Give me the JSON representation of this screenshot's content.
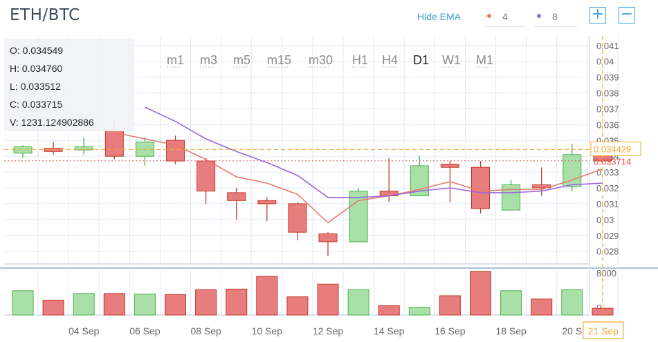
{
  "title": "ETH/BTC",
  "controls": {
    "hide_ema_label": "Hide EMA",
    "ema": [
      {
        "period": "4",
        "color": "#e8786a"
      },
      {
        "period": "8",
        "color": "#9a66e0"
      }
    ],
    "zoom_in": "+",
    "zoom_out": "−"
  },
  "timeframes": [
    "m1",
    "m3",
    "m5",
    "m15",
    "m30",
    "H1",
    "H4",
    "D1",
    "W1",
    "M1"
  ],
  "active_timeframe": "D1",
  "ohlc": {
    "open_label": "O:",
    "open": "0.034549",
    "high_label": "H:",
    "high": "0.034760",
    "low_label": "L:",
    "low": "0.033512",
    "close_label": "C:",
    "close": "0.033715",
    "volume_label": "V:",
    "volume": "1231.124902886"
  },
  "colors": {
    "up": "#a8e0a8",
    "up_stroke": "#4cae4c",
    "down": "#e87d7d",
    "down_stroke": "#c0392b",
    "grid": "#e2e8f2",
    "axis_text": "#666666",
    "crosshair": "#f0a830",
    "last_price": "#e05050"
  },
  "chart_data": {
    "type": "candlestick",
    "x_ticks": [
      "04 Sep",
      "06 Sep",
      "08 Sep",
      "10 Sep",
      "12 Sep",
      "14 Sep",
      "16 Sep",
      "18 Sep",
      "20 S"
    ],
    "price_ticks": [
      "0.041",
      "0.04",
      "0.039",
      "0.038",
      "0.037",
      "0.036",
      "0.035",
      "0.034",
      "0.033",
      "0.032",
      "0.031",
      "0.03",
      "0.029",
      "0.028"
    ],
    "volume_ticks": [
      "8000",
      "0"
    ],
    "ylim": [
      0.0272,
      0.0416
    ],
    "volume_ylim": [
      0,
      8000
    ],
    "crosshair_price": "0.034429",
    "crosshair_date": "21 Sep",
    "last_price_label": "0.033714",
    "last_price": 0.033714,
    "candles": [
      {
        "date": "02 Sep",
        "open": 0.0342,
        "high": 0.0347,
        "low": 0.0339,
        "close": 0.0346,
        "volume": 4400
      },
      {
        "date": "03 Sep",
        "open": 0.0345,
        "high": 0.0349,
        "low": 0.0341,
        "close": 0.0343,
        "volume": 2700
      },
      {
        "date": "04 Sep",
        "open": 0.0344,
        "high": 0.0352,
        "low": 0.0341,
        "close": 0.0346,
        "volume": 3900
      },
      {
        "date": "05 Sep",
        "open": 0.0356,
        "high": 0.0362,
        "low": 0.0338,
        "close": 0.034,
        "volume": 3900
      },
      {
        "date": "06 Sep",
        "open": 0.034,
        "high": 0.0352,
        "low": 0.0334,
        "close": 0.0349,
        "volume": 3800
      },
      {
        "date": "07 Sep",
        "open": 0.035,
        "high": 0.0353,
        "low": 0.0335,
        "close": 0.0337,
        "volume": 3700
      },
      {
        "date": "08 Sep",
        "open": 0.0337,
        "high": 0.0339,
        "low": 0.031,
        "close": 0.0318,
        "volume": 4600
      },
      {
        "date": "09 Sep",
        "open": 0.0317,
        "high": 0.032,
        "low": 0.03,
        "close": 0.0312,
        "volume": 4700
      },
      {
        "date": "10 Sep",
        "open": 0.0312,
        "high": 0.0314,
        "low": 0.0299,
        "close": 0.031,
        "volume": 7000
      },
      {
        "date": "11 Sep",
        "open": 0.031,
        "high": 0.0311,
        "low": 0.0287,
        "close": 0.0292,
        "volume": 3300
      },
      {
        "date": "12 Sep",
        "open": 0.0291,
        "high": 0.0292,
        "low": 0.0277,
        "close": 0.0286,
        "volume": 5600
      },
      {
        "date": "13 Sep",
        "open": 0.0286,
        "high": 0.032,
        "low": 0.0286,
        "close": 0.0318,
        "volume": 4600
      },
      {
        "date": "14 Sep",
        "open": 0.0318,
        "high": 0.0339,
        "low": 0.0311,
        "close": 0.0315,
        "volume": 1700
      },
      {
        "date": "15 Sep",
        "open": 0.0315,
        "high": 0.034,
        "low": 0.0315,
        "close": 0.0334,
        "volume": 1400
      },
      {
        "date": "16 Sep",
        "open": 0.0335,
        "high": 0.0337,
        "low": 0.0311,
        "close": 0.0333,
        "volume": 3500
      },
      {
        "date": "17 Sep",
        "open": 0.0333,
        "high": 0.0337,
        "low": 0.0304,
        "close": 0.0307,
        "volume": 7900
      },
      {
        "date": "18 Sep",
        "open": 0.0306,
        "high": 0.0325,
        "low": 0.0306,
        "close": 0.0322,
        "volume": 4400
      },
      {
        "date": "19 Sep",
        "open": 0.0322,
        "high": 0.0333,
        "low": 0.0315,
        "close": 0.032,
        "volume": 2900
      },
      {
        "date": "20 Sep",
        "open": 0.0321,
        "high": 0.0348,
        "low": 0.0318,
        "close": 0.0341,
        "volume": 4600
      },
      {
        "date": "21 Sep",
        "open": 0.0345,
        "high": 0.0347,
        "low": 0.0335,
        "close": 0.0337,
        "volume": 1231
      }
    ],
    "ema_series": [
      {
        "period": "4",
        "values": [
          null,
          null,
          null,
          0.0355,
          0.0351,
          0.0347,
          0.0338,
          0.0327,
          0.0323,
          0.0316,
          0.0298,
          0.0312,
          0.0315,
          0.0319,
          0.0324,
          0.0318,
          0.0319,
          0.0319,
          0.0325,
          0.0332
        ]
      },
      {
        "period": "8",
        "values": [
          null,
          null,
          null,
          null,
          0.0371,
          0.0362,
          0.0351,
          0.0343,
          0.0336,
          0.0328,
          0.0314,
          0.0314,
          0.0315,
          0.0318,
          0.032,
          0.0317,
          0.0317,
          0.0318,
          0.0322,
          0.0323
        ]
      }
    ]
  }
}
